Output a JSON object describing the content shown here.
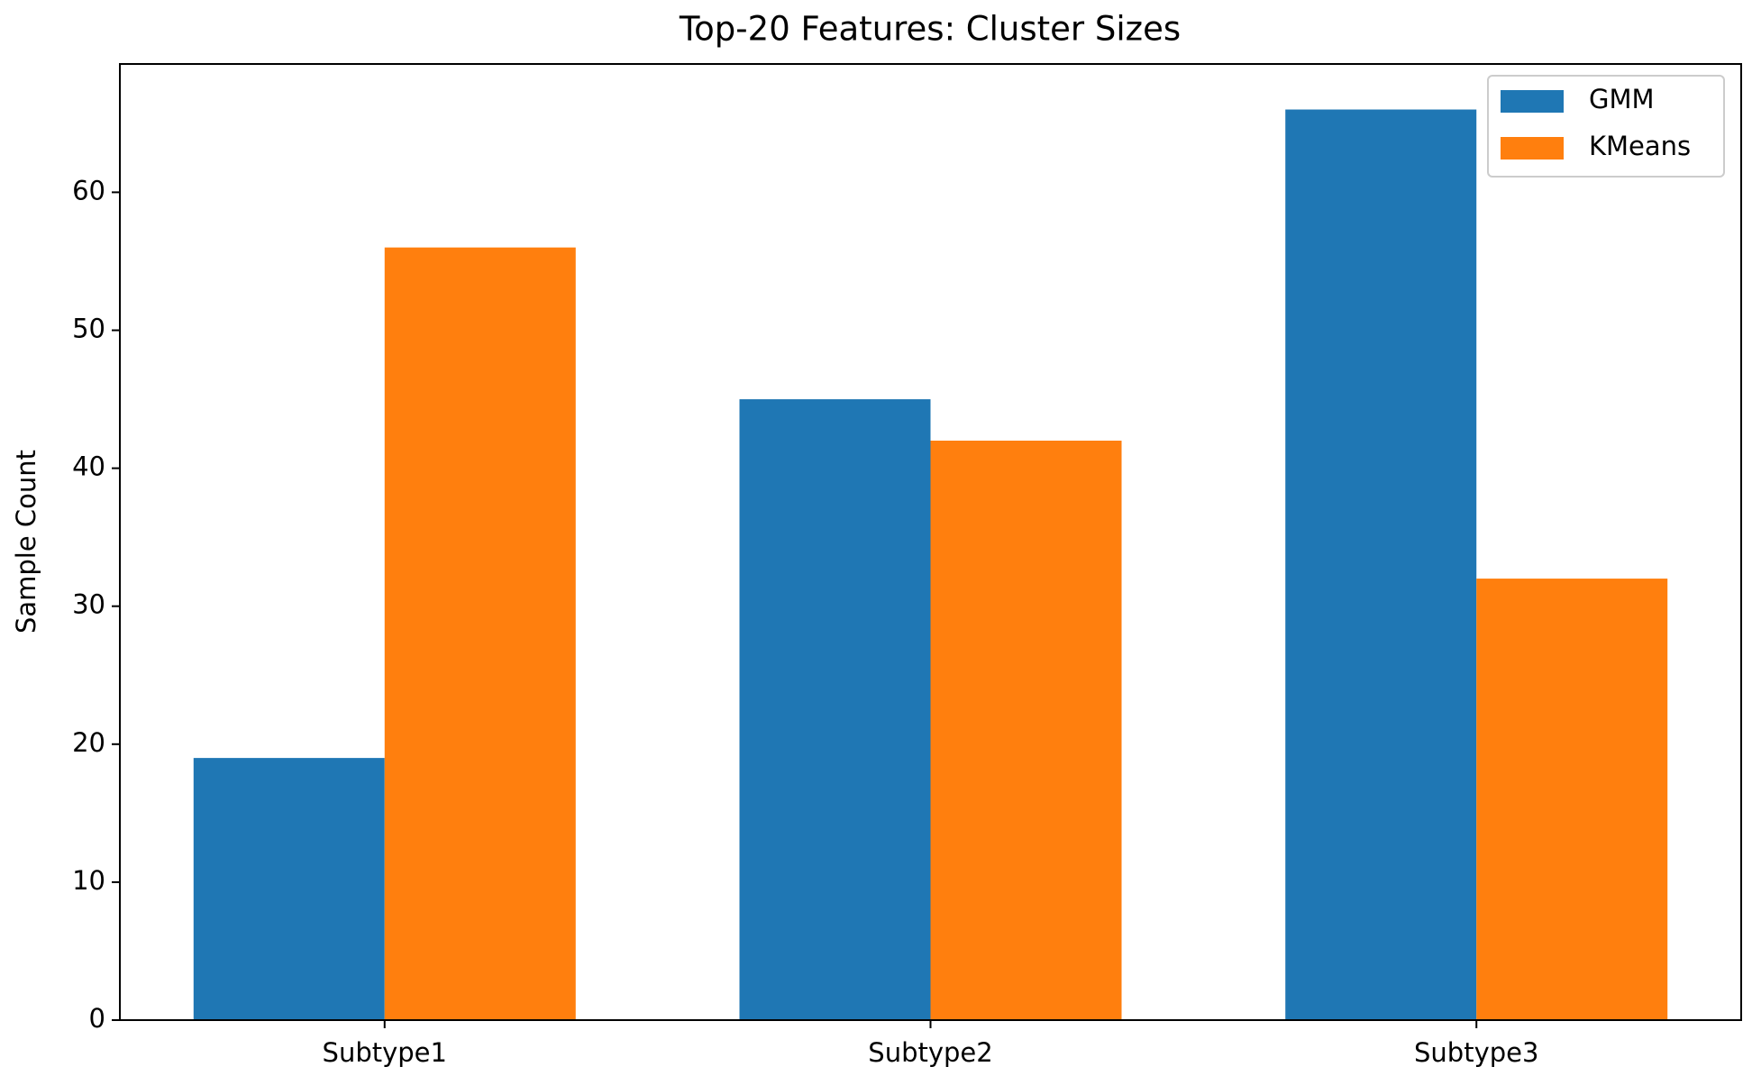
{
  "chart_data": {
    "type": "bar",
    "title": "Top-20 Features: Cluster Sizes",
    "y_label": "Sample Count",
    "categories": [
      "Subtype1",
      "Subtype2",
      "Subtype3"
    ],
    "series": [
      {
        "name": "GMM",
        "color": "#1f77b4",
        "values": [
          19,
          45,
          66
        ]
      },
      {
        "name": "KMeans",
        "color": "#ff7f0e",
        "values": [
          56,
          42,
          32
        ]
      }
    ],
    "ylim": [
      0,
      69.3
    ],
    "yticks": [
      0,
      10,
      20,
      30,
      40,
      50,
      60
    ],
    "legend": "upper right"
  }
}
